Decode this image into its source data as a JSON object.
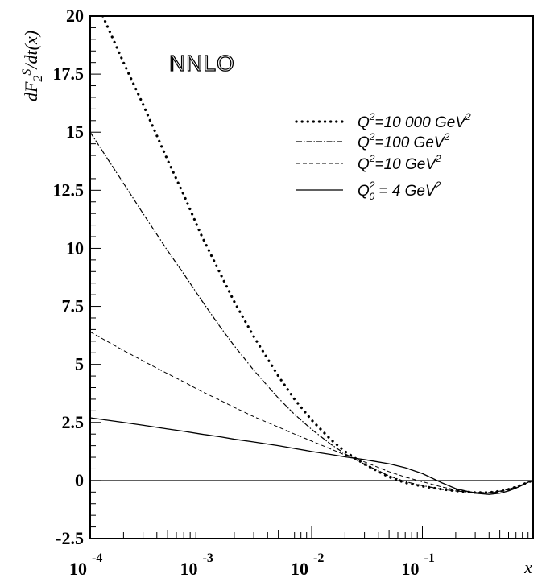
{
  "chart_data": {
    "type": "line",
    "xscale": "log",
    "xlim": [
      0.0001,
      1
    ],
    "ylim": [
      -2.5,
      20
    ],
    "xlabel": "x",
    "ylabel": "dF2S/dt(x)",
    "ylabel_parts": {
      "base": "dF",
      "sub": "2",
      "sup": "S",
      "tail": "/dt(x)"
    },
    "annotation": "NNLO",
    "xticks": [
      {
        "value": 0.0001,
        "base": "10",
        "exp": "-4"
      },
      {
        "value": 0.001,
        "base": "10",
        "exp": "-3"
      },
      {
        "value": 0.01,
        "base": "10",
        "exp": "-2"
      },
      {
        "value": 0.1,
        "base": "10",
        "exp": "-1"
      }
    ],
    "yticks": [
      {
        "value": -2.5,
        "label": "-2.5"
      },
      {
        "value": 0,
        "label": "0"
      },
      {
        "value": 2.5,
        "label": "2.5"
      },
      {
        "value": 5,
        "label": "5"
      },
      {
        "value": 7.5,
        "label": "7.5"
      },
      {
        "value": 10,
        "label": "10"
      },
      {
        "value": 12.5,
        "label": "12.5"
      },
      {
        "value": 15,
        "label": "15"
      },
      {
        "value": 17.5,
        "label": "17.5"
      },
      {
        "value": 20,
        "label": "20"
      }
    ],
    "reference_line": 0,
    "legend_position": "top-right",
    "series": [
      {
        "name": "Q²=10 000 GeV²",
        "legend": {
          "pre": "Q",
          "sup1": "2",
          "mid": "=10 000 GeV",
          "sup2": "2"
        },
        "style": "dotted",
        "x": [
          0.00013,
          0.0002,
          0.0003,
          0.0005,
          0.0007,
          0.001,
          0.0015,
          0.002,
          0.003,
          0.005,
          0.007,
          0.01,
          0.015,
          0.02,
          0.03,
          0.05,
          0.07,
          0.1,
          0.15,
          0.2,
          0.3,
          0.4,
          0.5,
          0.6,
          0.7,
          0.8,
          0.9,
          1.0
        ],
        "y": [
          20.0,
          18.0,
          16.2,
          13.8,
          12.3,
          10.6,
          8.9,
          7.7,
          6.2,
          4.5,
          3.5,
          2.6,
          1.75,
          1.25,
          0.7,
          0.15,
          -0.1,
          -0.25,
          -0.38,
          -0.45,
          -0.52,
          -0.52,
          -0.46,
          -0.38,
          -0.28,
          -0.18,
          -0.07,
          0.0
        ]
      },
      {
        "name": "Q²=100 GeV²",
        "legend": {
          "pre": "Q",
          "sup1": "2",
          "mid": "=100 GeV",
          "sup2": "2"
        },
        "style": "dashdot",
        "x": [
          0.0001,
          0.0002,
          0.0003,
          0.0005,
          0.0007,
          0.001,
          0.0015,
          0.002,
          0.003,
          0.005,
          0.007,
          0.01,
          0.015,
          0.02,
          0.03,
          0.05,
          0.07,
          0.1,
          0.15,
          0.2,
          0.3,
          0.4,
          0.5,
          0.6,
          0.7,
          0.8,
          0.9,
          1.0
        ],
        "y": [
          15.0,
          12.8,
          11.5,
          9.9,
          8.9,
          7.8,
          6.6,
          5.8,
          4.75,
          3.55,
          2.85,
          2.2,
          1.55,
          1.15,
          0.7,
          0.2,
          -0.05,
          -0.22,
          -0.38,
          -0.45,
          -0.52,
          -0.52,
          -0.46,
          -0.38,
          -0.28,
          -0.18,
          -0.07,
          0.0
        ]
      },
      {
        "name": "Q²=10 GeV²",
        "legend": {
          "pre": "Q",
          "sup1": "2",
          "mid": "=10 GeV",
          "sup2": "2"
        },
        "style": "dashed",
        "x": [
          0.0001,
          0.0002,
          0.0003,
          0.0005,
          0.0007,
          0.001,
          0.0015,
          0.002,
          0.003,
          0.005,
          0.007,
          0.01,
          0.015,
          0.02,
          0.03,
          0.05,
          0.07,
          0.1,
          0.15,
          0.2,
          0.3,
          0.4,
          0.5,
          0.6,
          0.7,
          0.8,
          0.9,
          1.0
        ],
        "y": [
          6.4,
          5.6,
          5.15,
          4.6,
          4.25,
          3.85,
          3.45,
          3.15,
          2.75,
          2.3,
          2.0,
          1.7,
          1.35,
          1.1,
          0.8,
          0.38,
          0.15,
          -0.05,
          -0.28,
          -0.4,
          -0.52,
          -0.54,
          -0.49,
          -0.4,
          -0.3,
          -0.19,
          -0.08,
          0.0
        ]
      },
      {
        "name": "Q0² = 4 GeV²",
        "legend": {
          "pre": "Q",
          "sup1": "2",
          "sub": "0",
          "mid": " = 4 GeV",
          "sup2": "2"
        },
        "style": "solid",
        "x": [
          0.0001,
          0.0002,
          0.0003,
          0.0005,
          0.0007,
          0.001,
          0.0015,
          0.002,
          0.003,
          0.005,
          0.007,
          0.01,
          0.015,
          0.02,
          0.03,
          0.05,
          0.07,
          0.1,
          0.15,
          0.2,
          0.3,
          0.4,
          0.5,
          0.6,
          0.7,
          0.8,
          0.9,
          1.0
        ],
        "y": [
          2.7,
          2.5,
          2.38,
          2.22,
          2.12,
          2.0,
          1.88,
          1.78,
          1.66,
          1.5,
          1.38,
          1.25,
          1.12,
          1.02,
          0.9,
          0.72,
          0.55,
          0.3,
          -0.1,
          -0.35,
          -0.55,
          -0.6,
          -0.55,
          -0.45,
          -0.33,
          -0.2,
          -0.08,
          0.0
        ]
      }
    ]
  }
}
